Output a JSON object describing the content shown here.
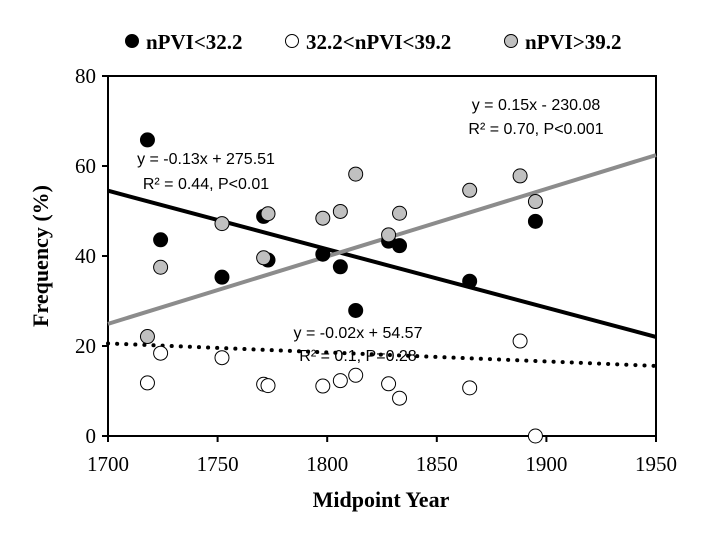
{
  "chart_data": {
    "type": "scatter",
    "xlabel": "Midpoint Year",
    "ylabel": "Frequency (%)",
    "xlim": [
      1700,
      1950
    ],
    "ylim": [
      0,
      80
    ],
    "xticks": [
      1700,
      1750,
      1800,
      1850,
      1900,
      1950
    ],
    "yticks": [
      0,
      20,
      40,
      60,
      80
    ],
    "grid": false,
    "legend_position": "top",
    "series": [
      {
        "name": "nPVI<32.2",
        "marker_fill": "#000000",
        "marker_stroke": "#000000",
        "points": [
          [
            1718,
            65.8
          ],
          [
            1724,
            43.6
          ],
          [
            1752,
            35.3
          ],
          [
            1771,
            48.8
          ],
          [
            1773,
            39.1
          ],
          [
            1798,
            40.4
          ],
          [
            1806,
            37.6
          ],
          [
            1813,
            27.9
          ],
          [
            1828,
            43.3
          ],
          [
            1833,
            42.3
          ],
          [
            1865,
            34.4
          ],
          [
            1895,
            47.7
          ]
        ],
        "trend": {
          "slope": -0.13,
          "intercept": 275.51,
          "style": "solid",
          "color": "#000000"
        },
        "equation": "y = -0.13x + 275.51",
        "stats": "R² = 0.44, P<0.01"
      },
      {
        "name": "32.2<nPVI<39.2",
        "marker_fill": "#ffffff",
        "marker_stroke": "#000000",
        "points": [
          [
            1718,
            11.8
          ],
          [
            1724,
            18.4
          ],
          [
            1752,
            17.4
          ],
          [
            1771,
            11.5
          ],
          [
            1773,
            11.2
          ],
          [
            1798,
            11.1
          ],
          [
            1806,
            12.3
          ],
          [
            1813,
            13.5
          ],
          [
            1828,
            11.6
          ],
          [
            1833,
            8.4
          ],
          [
            1865,
            10.7
          ],
          [
            1888,
            21.1
          ],
          [
            1895,
            0.0
          ]
        ],
        "trend": {
          "slope": -0.02,
          "intercept": 54.57,
          "style": "dotted",
          "color": "#000000"
        },
        "equation": "y = -0.02x + 54.57",
        "stats": "R² = 0.1, P=0.28"
      },
      {
        "name": "nPVI>39.2",
        "marker_fill": "#c0c0c0",
        "marker_stroke": "#000000",
        "points": [
          [
            1718,
            22.1
          ],
          [
            1724,
            37.5
          ],
          [
            1752,
            47.2
          ],
          [
            1771,
            39.6
          ],
          [
            1773,
            49.4
          ],
          [
            1798,
            48.4
          ],
          [
            1806,
            49.9
          ],
          [
            1813,
            58.2
          ],
          [
            1828,
            44.7
          ],
          [
            1833,
            49.5
          ],
          [
            1865,
            54.6
          ],
          [
            1888,
            57.8
          ],
          [
            1895,
            52.1
          ]
        ],
        "trend": {
          "slope": 0.15,
          "intercept": -230.08,
          "style": "solid",
          "color": "#8c8c8c"
        },
        "equation": "y = 0.15x - 230.08",
        "stats": "R² = 0.70, P<0.001"
      }
    ]
  }
}
